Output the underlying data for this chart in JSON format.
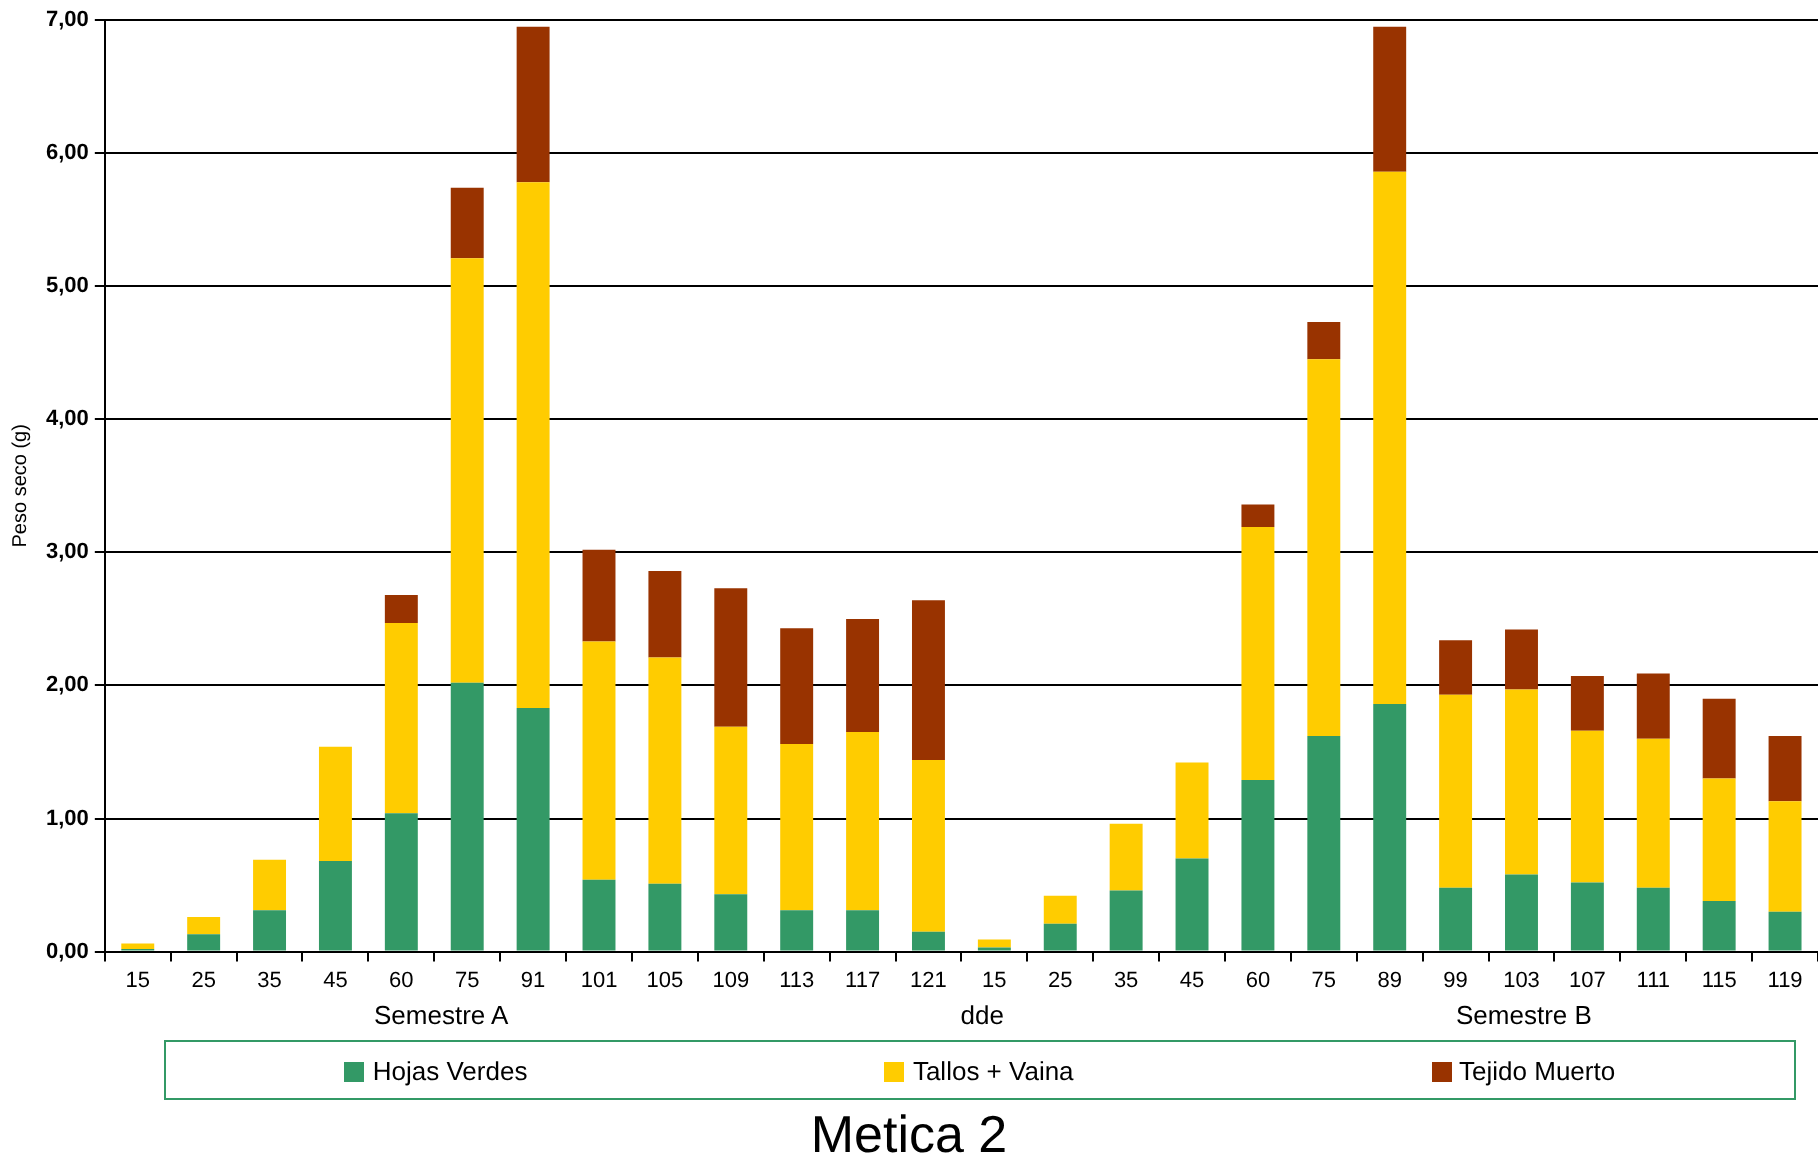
{
  "chart_data": {
    "type": "bar",
    "title": "Metica 2",
    "ylabel": "Peso seco (g)",
    "categories": [
      "15",
      "25",
      "35",
      "45",
      "60",
      "75",
      "91",
      "101",
      "105",
      "109",
      "113",
      "117",
      "121",
      "15",
      "25",
      "35",
      "45",
      "60",
      "75",
      "89",
      "99",
      "103",
      "107",
      "111",
      "115",
      "119"
    ],
    "series": [
      {
        "name": "Hojas Verdes",
        "color": "#339966",
        "values": [
          0.02,
          0.13,
          0.31,
          0.68,
          1.04,
          2.02,
          1.83,
          0.54,
          0.51,
          0.43,
          0.31,
          0.31,
          0.15,
          0.03,
          0.21,
          0.46,
          0.7,
          1.29,
          1.62,
          1.86,
          0.48,
          0.58,
          0.52,
          0.48,
          0.38,
          0.3
        ]
      },
      {
        "name": "Tallos + Vaina",
        "color": "#ffcc00",
        "values": [
          0.04,
          0.13,
          0.38,
          0.86,
          1.43,
          3.19,
          3.95,
          1.79,
          1.7,
          1.26,
          1.25,
          1.34,
          1.29,
          0.06,
          0.21,
          0.5,
          0.72,
          1.9,
          2.83,
          4.0,
          1.45,
          1.39,
          1.14,
          1.12,
          0.92,
          0.83
        ]
      },
      {
        "name": "Tejido Muerto",
        "color": "#993300",
        "values": [
          0,
          0,
          0,
          0,
          0.21,
          0.53,
          1.17,
          0.69,
          0.65,
          1.04,
          0.87,
          0.85,
          1.2,
          0,
          0,
          0,
          0,
          0.17,
          0.28,
          1.09,
          0.41,
          0.45,
          0.41,
          0.49,
          0.6,
          0.49
        ]
      }
    ],
    "stacked": true,
    "ylim": [
      0,
      7
    ],
    "yticks": [
      {
        "value": 0,
        "label": "0,00"
      },
      {
        "value": 1,
        "label": "1,00"
      },
      {
        "value": 2,
        "label": "2,00"
      },
      {
        "value": 3,
        "label": "3,00"
      },
      {
        "value": 4,
        "label": "4,00"
      },
      {
        "value": 5,
        "label": "5,00"
      },
      {
        "value": 6,
        "label": "6,00"
      },
      {
        "value": 7,
        "label": "7,00"
      }
    ],
    "grid": "y",
    "legend": "bottom",
    "annotations": [
      "Semestre A",
      "dde",
      "Semestre B"
    ]
  }
}
